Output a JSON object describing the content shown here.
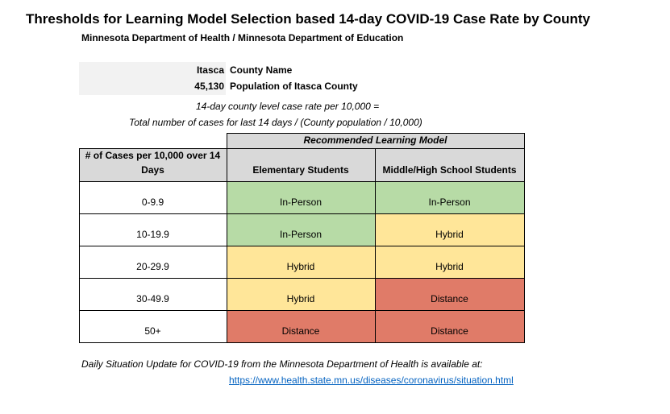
{
  "title": "Thresholds for Learning Model Selection based 14-day COVID-19 Case Rate by County",
  "subtitle": "Minnesota Department of Health / Minnesota Department of Education",
  "county": {
    "name_value": "Itasca",
    "name_label": "County Name",
    "population_value": "45,130",
    "population_label": "Population of Itasca County"
  },
  "formula": {
    "line1": "14-day county level case rate per 10,000 =",
    "line2": "Total number of cases for last 14 days / (County population / 10,000)"
  },
  "table": {
    "group_header": "Recommended Learning Model",
    "col1_header": "# of Cases per 10,000 over 14 Days",
    "col2_header": "Elementary Students",
    "col3_header": "Middle/High School Students",
    "rows": [
      {
        "range": "0-9.9",
        "elementary": "In-Person",
        "middle_high": "In-Person"
      },
      {
        "range": "10-19.9",
        "elementary": "In-Person",
        "middle_high": "Hybrid"
      },
      {
        "range": "20-29.9",
        "elementary": "Hybrid",
        "middle_high": "Hybrid"
      },
      {
        "range": "30-49.9",
        "elementary": "Hybrid",
        "middle_high": "Distance"
      },
      {
        "range": "50+",
        "elementary": "Distance",
        "middle_high": "Distance"
      }
    ]
  },
  "colors": {
    "in_person": "#b7dba6",
    "hybrid": "#ffe699",
    "distance": "#e07b68",
    "header_grey": "#d9d9d9",
    "link": "#0563c1"
  },
  "footer": {
    "note": "Daily Situation Update for COVID-19 from the Minnesota Department of Health is available at:",
    "link": "https://www.health.state.mn.us/diseases/coronavirus/situation.html"
  }
}
